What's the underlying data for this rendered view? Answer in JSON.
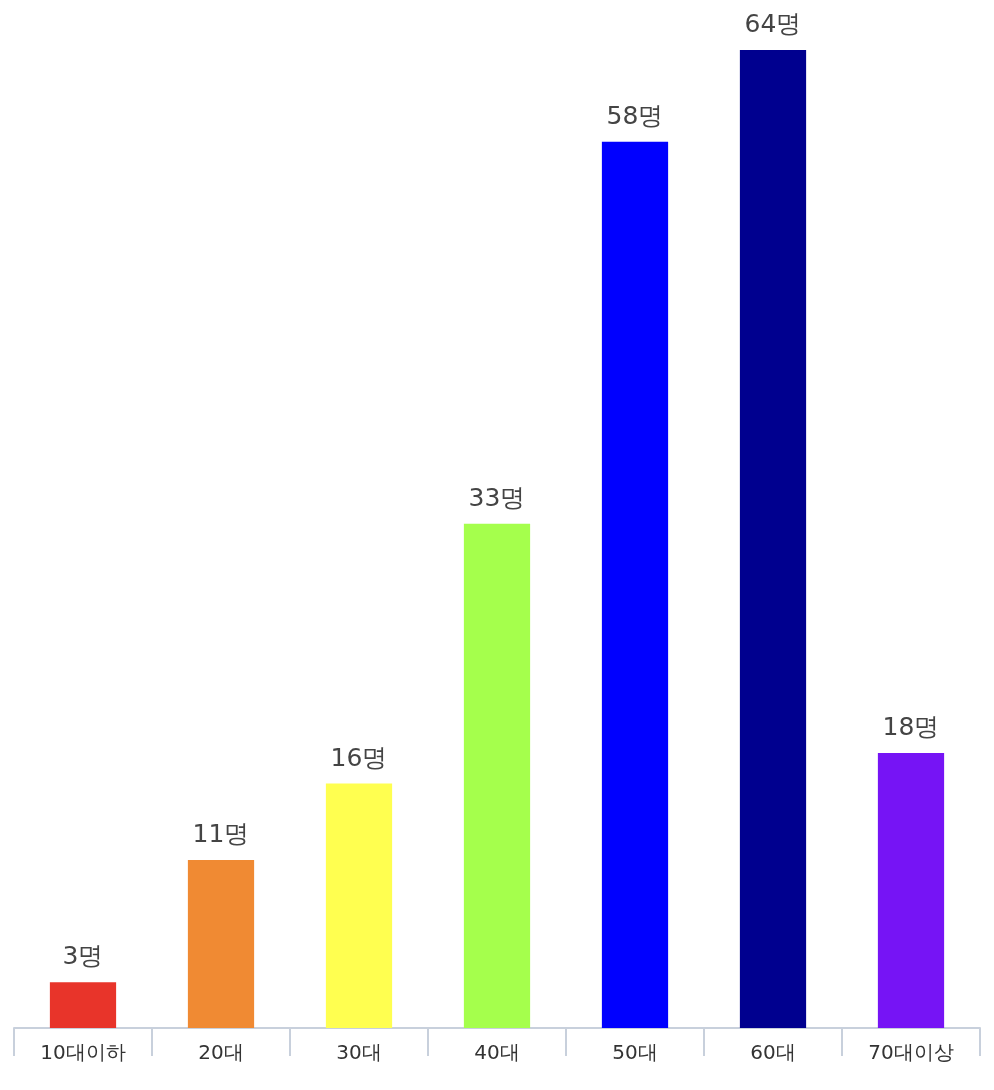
{
  "chart_data": {
    "type": "bar",
    "categories": [
      "10대이하",
      "20대",
      "30대",
      "40대",
      "50대",
      "60대",
      "70대이상"
    ],
    "values": [
      3,
      11,
      16,
      33,
      58,
      64,
      18
    ],
    "colors": [
      "#e8342a",
      "#f08a33",
      "#ffff50",
      "#a5ff4c",
      "#0000ff",
      "#00008f",
      "#7614f5"
    ],
    "value_labels": [
      "3명",
      "11명",
      "16명",
      "33명",
      "58명",
      "64명",
      "18명"
    ]
  }
}
